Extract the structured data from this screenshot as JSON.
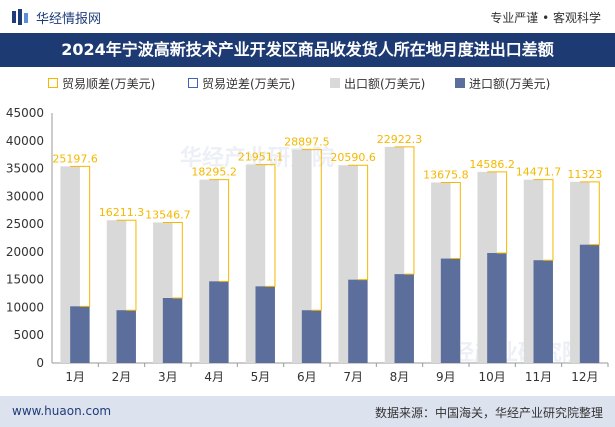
{
  "header": {
    "logo_text": "华经情报网",
    "slogan": "专业严谨 • 客观科学"
  },
  "title": "2024年宁波高新技术产业开发区商品收发货人所在地月度进出口差额",
  "watermark": "华经产业研究院",
  "footer": {
    "url": "www.huaon.com",
    "source": "数据来源：中国海关，华经产业研究院整理"
  },
  "colors": {
    "header_bg": "#1d3a72",
    "surplus": "#f5b800",
    "deficit": "#3e64b8",
    "export": "#d9d9d9",
    "import": "#5c6f9c",
    "footer_bg": "#dde3ee"
  },
  "chart_data": {
    "type": "bar",
    "categories": [
      "1月",
      "2月",
      "3月",
      "4月",
      "5月",
      "6月",
      "7月",
      "8月",
      "9月",
      "10月",
      "11月",
      "12月"
    ],
    "series": [
      {
        "name": "贸易顺差(万美元)",
        "values": [
          25197.6,
          16211.3,
          13546.7,
          18295.2,
          21951.1,
          28897.5,
          20590.6,
          22922.3,
          13675.8,
          14586.2,
          14471.7,
          11323
        ]
      },
      {
        "name": "贸易逆差(万美元)",
        "values": [
          0,
          0,
          0,
          0,
          0,
          0,
          0,
          0,
          0,
          0,
          0,
          0
        ]
      },
      {
        "name": "出口额(万美元)",
        "values": [
          35400,
          25700,
          25300,
          33000,
          35700,
          38400,
          35600,
          38900,
          32500,
          34400,
          33000,
          32600
        ]
      },
      {
        "name": "进口额(万美元)",
        "values": [
          10200,
          9500,
          11700,
          14700,
          13800,
          9500,
          15000,
          16000,
          18800,
          19800,
          18500,
          21300
        ]
      }
    ],
    "data_labels": [
      "25197.6",
      "16211.3",
      "13546.7",
      "18295.2",
      "21951.1",
      "28897.5",
      "20590.6",
      "22922.3",
      "13675.8",
      "14586.2",
      "14471.7",
      "11323"
    ],
    "yticks": [
      "0",
      "5000",
      "10000",
      "15000",
      "20000",
      "25000",
      "30000",
      "35000",
      "40000",
      "45000"
    ],
    "ylim": [
      0,
      45000
    ],
    "legend_position": "top",
    "grid": false
  }
}
